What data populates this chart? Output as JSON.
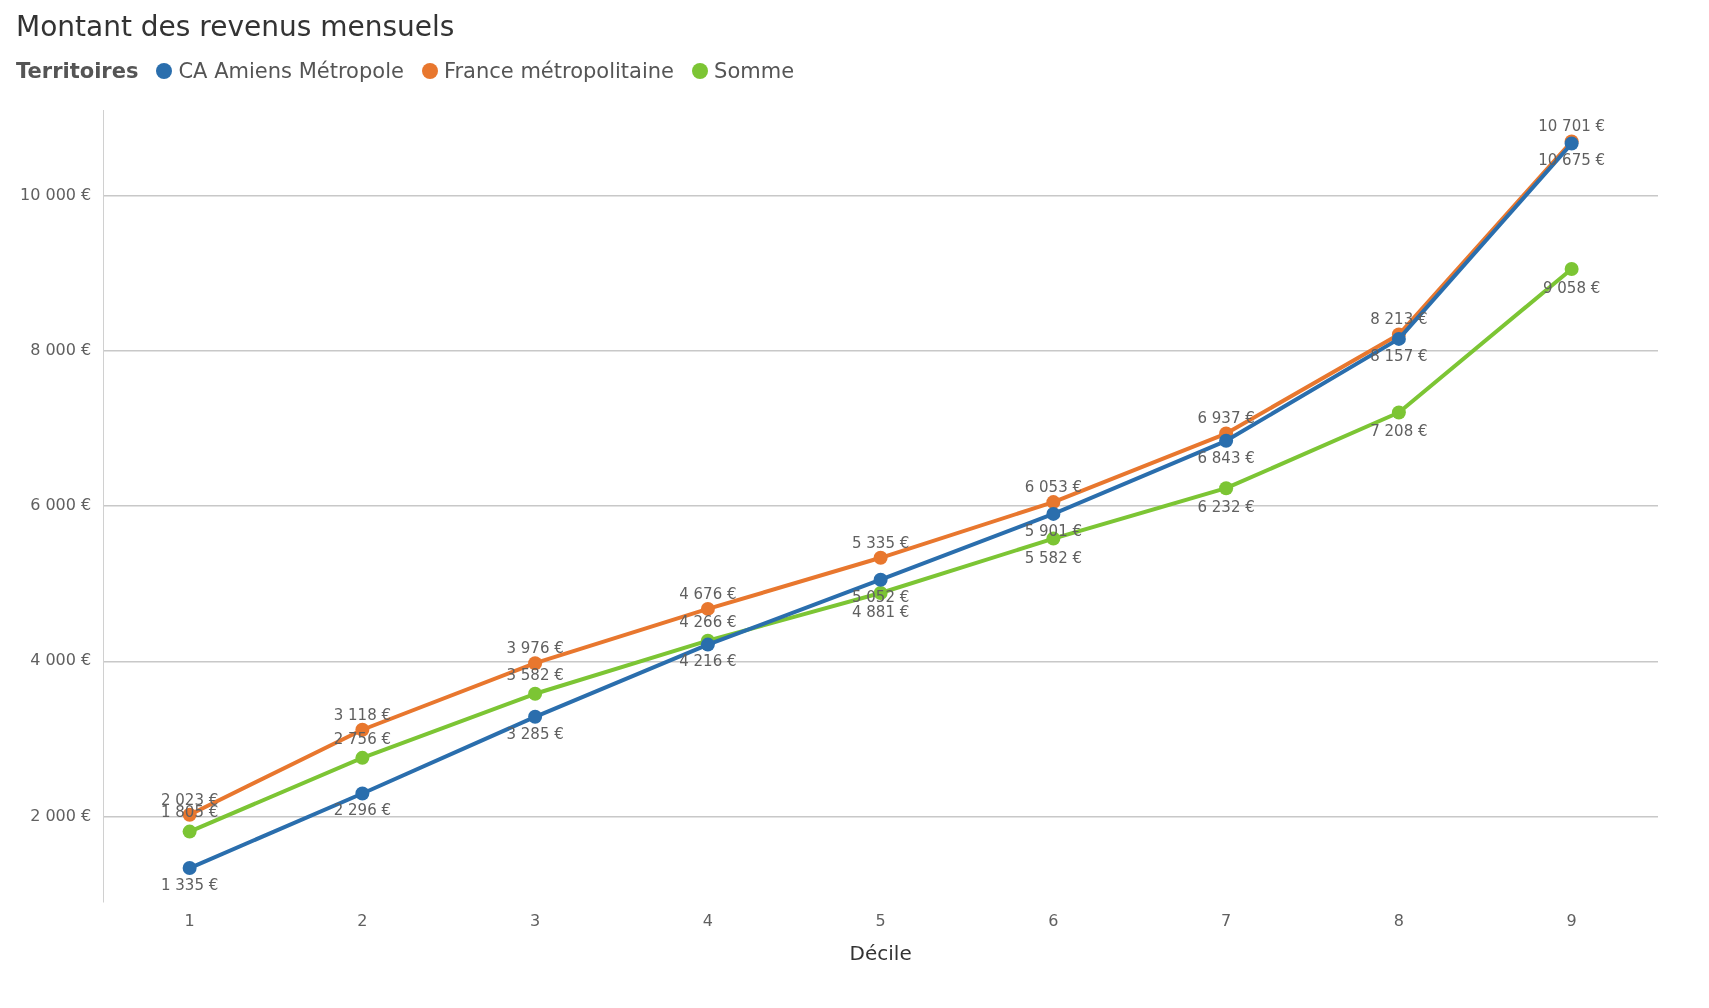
{
  "chart_data": {
    "type": "line",
    "title": "Montant des revenus mensuels",
    "xlabel": "Décile",
    "legend_title": "Territoires",
    "legend": "top left",
    "grid": "y",
    "marker": "circle",
    "line_style": "solid",
    "categories": [
      "1",
      "2",
      "3",
      "4",
      "5",
      "6",
      "7",
      "8",
      "9"
    ],
    "ylim": [
      900,
      11100
    ],
    "yticks": [
      {
        "value": 2000,
        "label": "2 000 €"
      },
      {
        "value": 4000,
        "label": "4 000 €"
      },
      {
        "value": 6000,
        "label": "6 000 €"
      },
      {
        "value": 8000,
        "label": "8 000 €"
      },
      {
        "value": 10000,
        "label": "10 000 €"
      }
    ],
    "series": [
      {
        "name": "CA Amiens Métropole",
        "color": "#2a6ead",
        "values": [
          1335,
          2296,
          3285,
          4216,
          5052,
          5901,
          6843,
          8157,
          10675
        ],
        "value_labels": [
          "1 335 €",
          "2 296 €",
          "3 285 €",
          "4 216 €",
          "5 052 €",
          "5 901 €",
          "6 843 €",
          "8 157 €",
          "10 675 €"
        ]
      },
      {
        "name": "France métropolitaine",
        "color": "#e8772e",
        "values": [
          2023,
          3118,
          3976,
          4676,
          5335,
          6053,
          6937,
          8213,
          10701
        ],
        "value_labels": [
          "2 023 €",
          "3 118 €",
          "3 976 €",
          "4 676 €",
          "5 335 €",
          "6 053 €",
          "6 937 €",
          "8 213 €",
          "10 701 €"
        ]
      },
      {
        "name": "Somme",
        "color": "#7cc534",
        "values": [
          1805,
          2756,
          3582,
          4266,
          4881,
          5582,
          6232,
          7208,
          9058
        ],
        "value_labels": [
          "1 805 €",
          "2 756 €",
          "3 582 €",
          "4 266 €",
          "4 881 €",
          "5 582 €",
          "6 232 €",
          "7 208 €",
          "9 058 €"
        ]
      }
    ]
  }
}
